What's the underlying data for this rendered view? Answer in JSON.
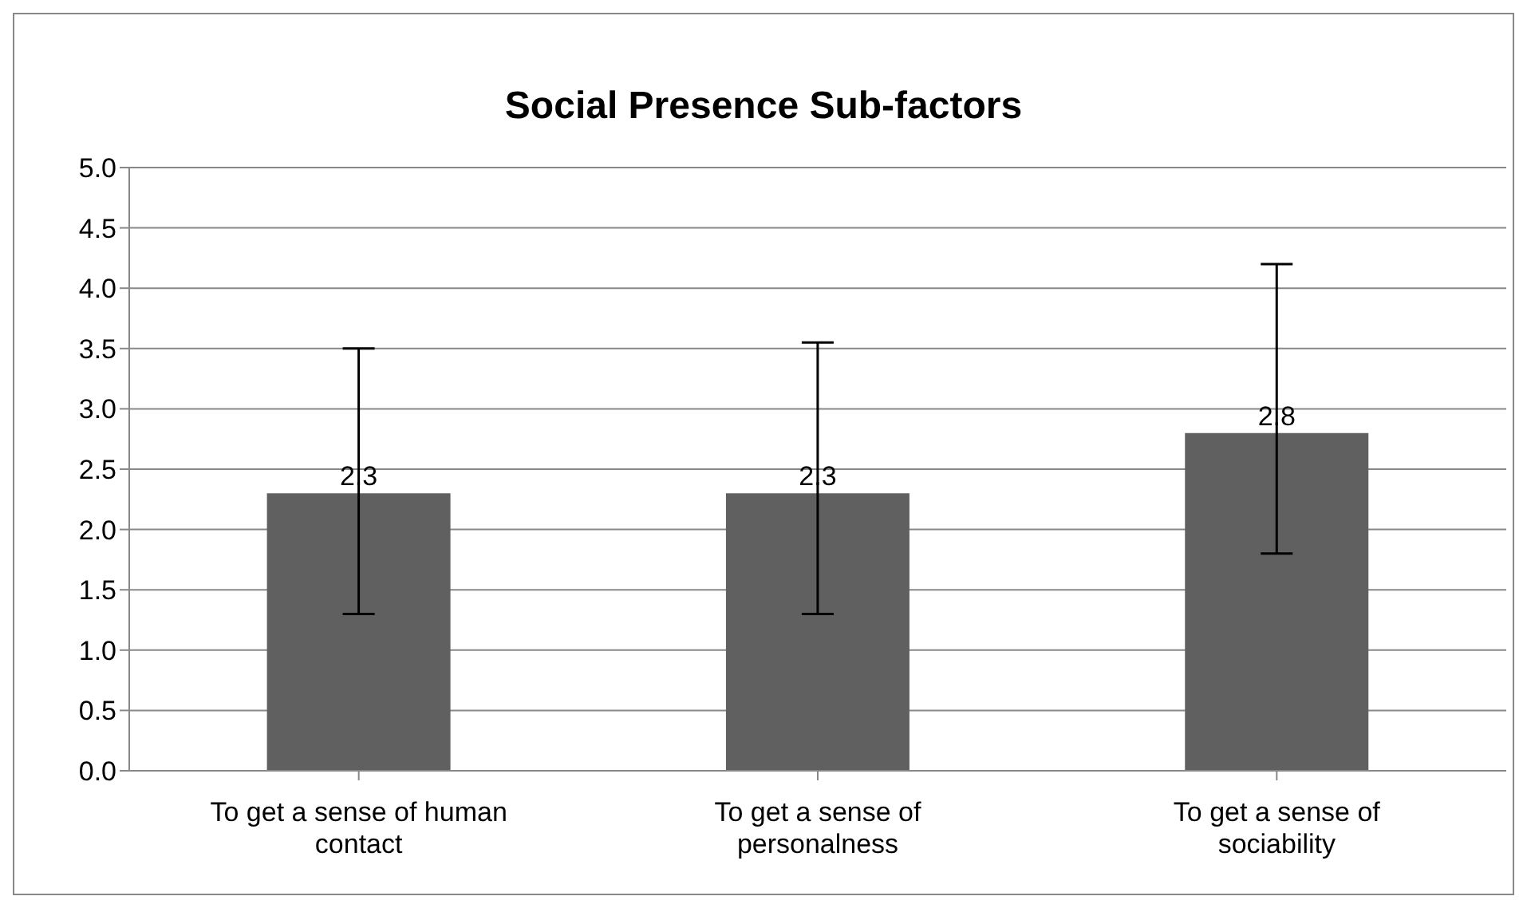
{
  "chart_data": {
    "type": "bar",
    "title": "Social Presence Sub-factors",
    "categories": [
      "To get a sense of human contact",
      "To get a sense of personalness",
      "To get a sense of sociability"
    ],
    "values": [
      2.3,
      2.3,
      2.8
    ],
    "errors": [
      [
        1.3,
        3.5
      ],
      [
        1.3,
        3.55
      ],
      [
        1.8,
        4.2
      ]
    ],
    "color": "#606060",
    "data_labels": true,
    "ylim": [
      0,
      5
    ],
    "yticks": [
      {
        "value": 0,
        "label": "0.0"
      },
      {
        "value": 0.5,
        "label": "0.5"
      },
      {
        "value": 1,
        "label": "1.0"
      },
      {
        "value": 1.5,
        "label": "1.5"
      },
      {
        "value": 2,
        "label": "2.0"
      },
      {
        "value": 2.5,
        "label": "2.5"
      },
      {
        "value": 3,
        "label": "3.0"
      },
      {
        "value": 3.5,
        "label": "3.5"
      },
      {
        "value": 4,
        "label": "4.0"
      },
      {
        "value": 4.5,
        "label": "4.5"
      },
      {
        "value": 5,
        "label": "5.0"
      }
    ],
    "grid": "y",
    "legend": false
  }
}
